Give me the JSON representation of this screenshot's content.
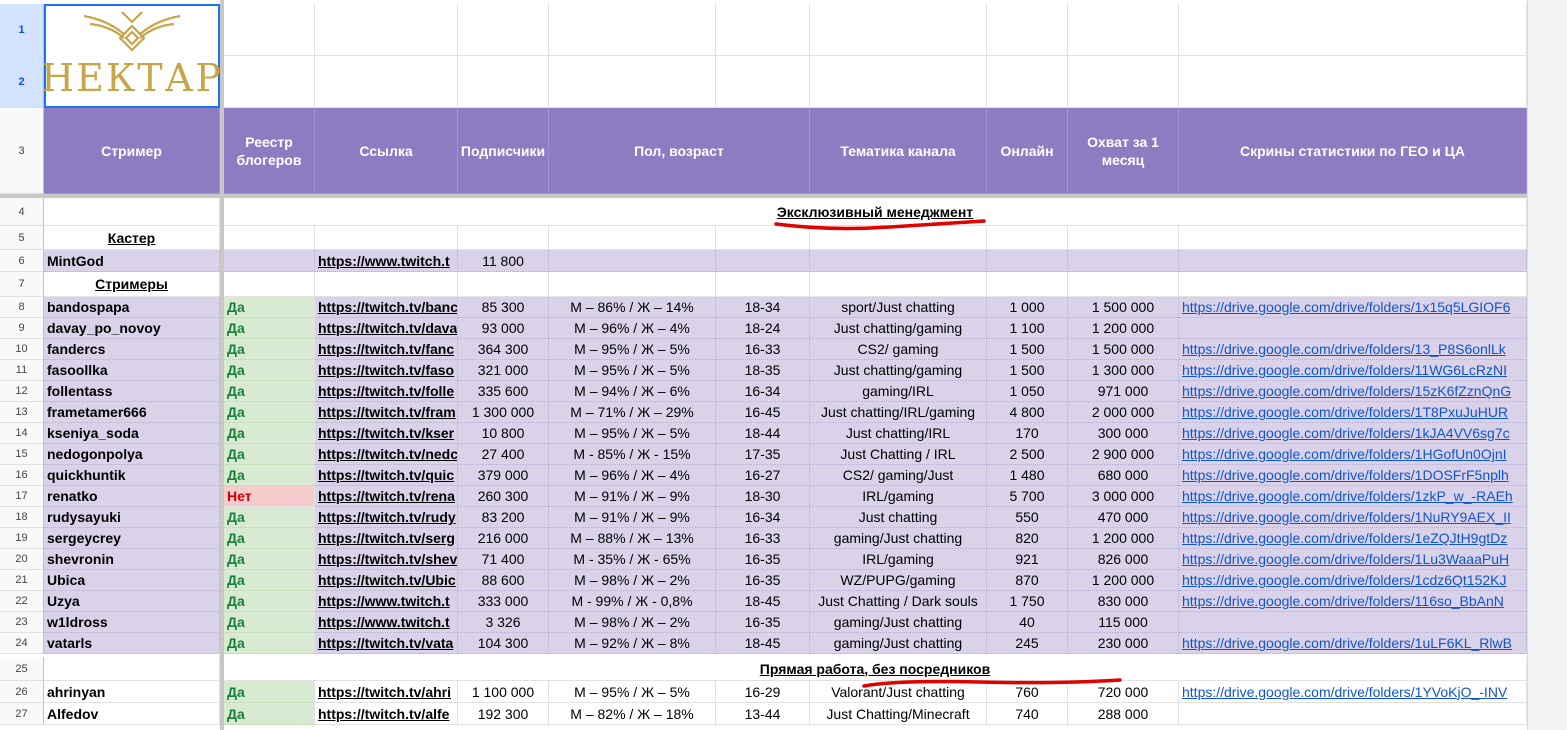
{
  "logo": {
    "text": "НЕКТАР",
    "color": "#c9a54a"
  },
  "colors": {
    "header": "#8e7cc3",
    "row": "#d9d2e9",
    "yes": "#d9ead3",
    "no": "#f4cccc",
    "link": "#1155cc"
  },
  "row_numbers": [
    "1",
    "2",
    "3",
    "4",
    "5",
    "6",
    "7",
    "8",
    "9",
    "10",
    "11",
    "12",
    "13",
    "14",
    "15",
    "16",
    "17",
    "18",
    "19",
    "20",
    "21",
    "22",
    "23",
    "24",
    "25",
    "26",
    "27"
  ],
  "headers": {
    "streamer": "Стример",
    "registry": "Реестр блогеров",
    "link": "Ссылка",
    "subscribers": "Подписчики",
    "gender_age": "Пол, возраст",
    "topic": "Тематика канала",
    "online": "Онлайн",
    "reach": "Охват за 1 месяц",
    "screens": "Скрины статистики  по ГЕО и ЦА"
  },
  "sections": {
    "exclusive": "Эксклюзивный менеджмент",
    "caster": "Кастер",
    "streamers": "Стримеры",
    "direct": "Прямая работа, без посредников"
  },
  "caster_row": {
    "name": "MintGod",
    "link": "https://www.twitch.t",
    "subs": "11 800"
  },
  "streamers": [
    {
      "row": "8",
      "name": "bandospapa",
      "reg": "Да",
      "link": "https://twitch.tv/banc",
      "subs": "85 300",
      "gender": "М – 86% / Ж – 14%",
      "age": "18-34",
      "topic": "sport/Just chatting",
      "online": "1 000",
      "reach": "1 500 000",
      "screens": "https://drive.google.com/drive/folders/1x15q5LGIOF6"
    },
    {
      "row": "9",
      "name": "davay_po_novoy",
      "reg": "Да",
      "link": "https://twitch.tv/dava",
      "subs": "93 000",
      "gender": "М – 96% / Ж – 4%",
      "age": "18-24",
      "topic": "Just chatting/gaming",
      "online": "1 100",
      "reach": "1 200 000",
      "screens": ""
    },
    {
      "row": "10",
      "name": "fandercs",
      "reg": "Да",
      "link": "https://twitch.tv/fanc",
      "subs": "364 300",
      "gender": "М – 95% / Ж – 5%",
      "age": "16-33",
      "topic": "CS2/ gaming",
      "online": "1 500",
      "reach": "1 500 000",
      "screens": "https://drive.google.com/drive/folders/13_P8S6onlLk"
    },
    {
      "row": "11",
      "name": "fasoollka",
      "reg": "Да",
      "link": "https://twitch.tv/faso",
      "subs": "321 000",
      "gender": "М – 95% / Ж – 5%",
      "age": "18-35",
      "topic": "Just chatting/gaming",
      "online": "1 500",
      "reach": "1 300 000",
      "screens": "https://drive.google.com/drive/folders/11WG6LcRzNI"
    },
    {
      "row": "12",
      "name": "follentass",
      "reg": "Да",
      "link": "https://twitch.tv/folle",
      "subs": "335 600",
      "gender": "М – 94% / Ж – 6%",
      "age": "16-34",
      "topic": "gaming/IRL",
      "online": "1 050",
      "reach": "971 000",
      "screens": "https://drive.google.com/drive/folders/15zK6fZznQnG"
    },
    {
      "row": "13",
      "name": "frametamer666",
      "reg": "Да",
      "link": "https://twitch.tv/fram",
      "subs": "1 300 000",
      "gender": "М – 71% / Ж – 29%",
      "age": "16-45",
      "topic": "Just chatting/IRL/gaming",
      "online": "4 800",
      "reach": "2 000 000",
      "screens": "https://drive.google.com/drive/folders/1T8PxuJuHUR"
    },
    {
      "row": "14",
      "name": "kseniya_soda",
      "reg": "Да",
      "link": "https://twitch.tv/kser",
      "subs": "10 800",
      "gender": "М – 95% / Ж – 5%",
      "age": "18-44",
      "topic": "Just chatting/IRL",
      "online": "170",
      "reach": "300 000",
      "screens": "https://drive.google.com/drive/folders/1kJA4VV6sg7c"
    },
    {
      "row": "15",
      "name": "nedogonpolya",
      "reg": "Да",
      "link": "https://twitch.tv/nedc",
      "subs": "27 400",
      "gender": "М - 85% / Ж - 15%",
      "age": "17-35",
      "topic": "Just Chatting / IRL",
      "online": "2 500",
      "reach": "2 900 000",
      "screens": "https://drive.google.com/drive/folders/1HGofUn0OjnI"
    },
    {
      "row": "16",
      "name": "quickhuntik",
      "reg": "Да",
      "link": "https://twitch.tv/quic",
      "subs": "379 000",
      "gender": "М – 96% / Ж – 4%",
      "age": "16-27",
      "topic": "CS2/ gaming/Just",
      "online": "1 480",
      "reach": "680 000",
      "screens": "https://drive.google.com/drive/folders/1DOSFrF5nplh"
    },
    {
      "row": "17",
      "name": "renatko",
      "reg": "Нет",
      "link": "https://twitch.tv/rena",
      "subs": "260 300",
      "gender": "М – 91% / Ж – 9%",
      "age": "18-30",
      "topic": "IRL/gaming",
      "online": "5 700",
      "reach": "3 000 000",
      "screens": "https://drive.google.com/drive/folders/1zkP_w_-RAEh"
    },
    {
      "row": "18",
      "name": "rudysayuki",
      "reg": "Да",
      "link": "https://twitch.tv/rudy",
      "subs": "83 200",
      "gender": "М – 91% / Ж – 9%",
      "age": "16-34",
      "topic": "Just chatting",
      "online": "550",
      "reach": "470 000",
      "screens": "https://drive.google.com/drive/folders/1NuRY9AEX_II"
    },
    {
      "row": "19",
      "name": "sergeycrey",
      "reg": "Да",
      "link": "https://twitch.tv/serg",
      "subs": "216 000",
      "gender": "М – 88% / Ж – 13%",
      "age": "16-33",
      "topic": "gaming/Just chatting",
      "online": "820",
      "reach": "1 200 000",
      "screens": "https://drive.google.com/drive/folders/1eZQJtH9gtDz"
    },
    {
      "row": "20",
      "name": "shevronin",
      "reg": "Да",
      "link": "https://twitch.tv/shev",
      "subs": "71 400",
      "gender": "М - 35% / Ж - 65%",
      "age": "16-35",
      "topic": "IRL/gaming",
      "online": "921",
      "reach": "826 000",
      "screens": "https://drive.google.com/drive/folders/1Lu3WaaaPuH"
    },
    {
      "row": "21",
      "name": "Ubica",
      "reg": "Да",
      "link": "https://twitch.tv/Ubic",
      "subs": "88 600",
      "gender": "М – 98% / Ж – 2%",
      "age": "16-35",
      "topic": "WZ/PUPG/gaming",
      "online": "870",
      "reach": "1 200 000",
      "screens": "https://drive.google.com/drive/folders/1cdz6Qt152KJ"
    },
    {
      "row": "22",
      "name": "Uzya",
      "reg": "Да",
      "link": "https://www.twitch.t",
      "subs": "333 000",
      "gender": "М - 99% / Ж - 0,8%",
      "age": "18-45",
      "topic": "Just Chatting / Dark souls",
      "online": "1 750",
      "reach": "830 000",
      "screens": "https://drive.google.com/drive/folders/116so_BbAnN"
    },
    {
      "row": "23",
      "name": "w1ldross",
      "reg": "Да",
      "link": "https://www.twitch.t",
      "subs": "3 326",
      "gender": "М – 98% / Ж – 2%",
      "age": "16-35",
      "topic": "gaming/Just chatting",
      "online": "40",
      "reach": "115 000",
      "screens": ""
    },
    {
      "row": "24",
      "name": "vatarls",
      "reg": "Да",
      "link": "https://twitch.tv/vata",
      "subs": "104 300",
      "gender": "М – 92% / Ж – 8%",
      "age": "18-45",
      "topic": "gaming/Just chatting",
      "online": "245",
      "reach": "230 000",
      "screens": "https://drive.google.com/drive/folders/1uLF6KL_RlwB"
    }
  ],
  "direct_rows": [
    {
      "row": "26",
      "name": "ahrinyan",
      "reg": "Да",
      "link": "https://twitch.tv/ahri",
      "subs": "1 100 000",
      "gender": "М – 95% / Ж – 5%",
      "age": "16-29",
      "topic": "Valorant/Just chatting",
      "online": "760",
      "reach": "720 000",
      "screens": "https://drive.google.com/drive/folders/1YVoKjO_-INV"
    },
    {
      "row": "27",
      "name": "Alfedov",
      "reg": "Да",
      "link": "https://twitch.tv/alfe",
      "subs": "192 300",
      "gender": "М – 82% / Ж – 18%",
      "age": "13-44",
      "topic": "Just Chatting/Minecraft",
      "online": "740",
      "reach": "288 000",
      "screens": ""
    }
  ]
}
